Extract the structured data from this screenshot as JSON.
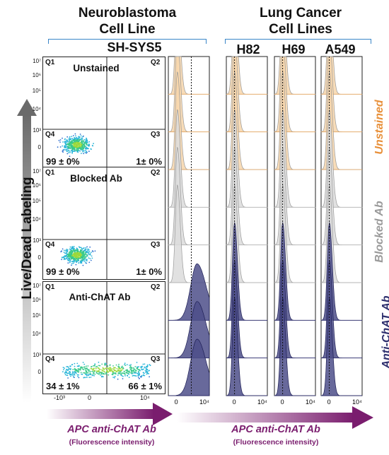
{
  "headers": {
    "neuro": "Neuroblastoma Cell Line",
    "neuro_line1": "Neuroblastoma",
    "neuro_line2": "Cell Line",
    "neuro_cell": "SH-SYS5",
    "lung_line1": "Lung Cancer",
    "lung_line2": "Cell Lines",
    "lung_cells": [
      "H82",
      "H69",
      "A549"
    ]
  },
  "y_axis_label": "Live/Dead Labeling",
  "x_axis_label": "APC anti-ChAT Ab",
  "x_axis_sub": "(Fluorescence intensity)",
  "conditions": [
    "Unstained",
    "Blocked Ab",
    "Anti-ChAT Ab"
  ],
  "condition_colors": [
    "#e8903a",
    "#9a9a9a",
    "#2e2f6e"
  ],
  "histogram_fills": [
    "#f7d6ab",
    "#dcdcdc",
    "#4e4f8a"
  ],
  "quadrant_labels": [
    "Q1",
    "Q2",
    "Q3",
    "Q4"
  ],
  "scatter_y_ticks": [
    "10⁵",
    "10⁴",
    "10³",
    "0"
  ],
  "scatter_y_tick_top": "10⁷",
  "scatter_y_tick_6": "10⁶",
  "scatter_x_ticks": [
    "-10³",
    "0",
    "10⁴"
  ],
  "hist_x_ticks": [
    "0",
    "10⁴"
  ],
  "chart_data": {
    "type": "scatter",
    "panels": [
      {
        "title": "Unstained",
        "q4": "99 ± 0%",
        "q3": "1± 0%",
        "q4_value": 99,
        "q3_value": 1
      },
      {
        "title": "Blocked Ab",
        "q4": "99 ± 0%",
        "q3": "1± 0%",
        "q4_value": 99,
        "q3_value": 1
      },
      {
        "title": "Anti-ChAT Ab",
        "q4": "34 ± 1%",
        "q3": "66 ± 1%",
        "q4_value": 34,
        "q3_value": 66
      }
    ],
    "histograms": {
      "columns": [
        "SH-SYS5",
        "H82",
        "H69",
        "A549"
      ],
      "rows_per_condition": 3,
      "conditions": [
        "Unstained",
        "Blocked Ab",
        "Anti-ChAT Ab"
      ],
      "peak_positions": {
        "SH-SYS5": [
          [
            0.1,
            0.1,
            0.1
          ],
          [
            0.1,
            0.1,
            0.1
          ],
          [
            2.5,
            2.5,
            2.5
          ]
        ],
        "H82": [
          [
            0.0,
            0.0,
            0.0
          ],
          [
            0.0,
            0.0,
            0.0
          ],
          [
            0.0,
            0.0,
            0.0
          ]
        ],
        "H69": [
          [
            0.0,
            0.0,
            0.0
          ],
          [
            0.0,
            0.0,
            0.0
          ],
          [
            0.0,
            0.0,
            0.0
          ]
        ],
        "A549": [
          [
            0.0,
            0.0,
            0.0
          ],
          [
            0.0,
            0.0,
            0.0
          ],
          [
            0.0,
            0.0,
            0.0
          ]
        ]
      },
      "xlim": [
        -1,
        4
      ]
    }
  }
}
